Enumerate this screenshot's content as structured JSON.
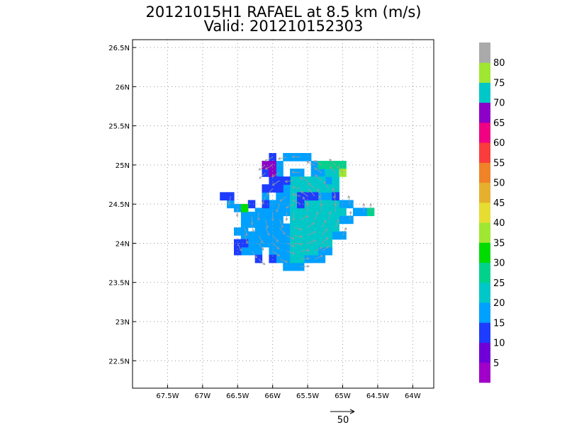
{
  "title_line1": "20121015H1 RAFAEL at 8.5 km (m/s)",
  "title_line2": "Valid: 201210152303",
  "chart_data": {
    "type": "heatmap",
    "title": "20121015H1 RAFAEL at 8.5 km (m/s)",
    "subtitle": "Valid: 201210152303",
    "xlim": [
      -68.0,
      -63.7
    ],
    "ylim": [
      22.15,
      26.6
    ],
    "x_ticks": [
      -67.5,
      -67.0,
      -66.5,
      -66.0,
      -65.5,
      -65.0,
      -64.5,
      -64.0
    ],
    "x_tick_labels": [
      "67.5W",
      "67W",
      "66.5W",
      "66W",
      "65.5W",
      "65W",
      "64.5W",
      "64W"
    ],
    "y_ticks": [
      22.5,
      23.0,
      23.5,
      24.0,
      24.5,
      25.0,
      25.5,
      26.0,
      26.5
    ],
    "y_tick_labels": [
      "22.5N",
      "23N",
      "23.5N",
      "24N",
      "24.5N",
      "25N",
      "25.5N",
      "26N",
      "26.5N"
    ],
    "grid": true,
    "grid_style": "dotted",
    "colorbar": {
      "orientation": "vertical",
      "placement": "right",
      "labels": [
        "5",
        "10",
        "15",
        "20",
        "25",
        "30",
        "35",
        "40",
        "45",
        "50",
        "55",
        "60",
        "65",
        "70",
        "75",
        "80"
      ],
      "colors": [
        "#a000c8",
        "#7000d8",
        "#1e3cff",
        "#00a0ff",
        "#00c8c8",
        "#00d28c",
        "#00dc00",
        "#a0e632",
        "#e6dc32",
        "#e6af2d",
        "#f08228",
        "#fa3c3c",
        "#f00082",
        "#8c00c8",
        "#00c8c8",
        "#a0e632",
        "#aaaaaa"
      ]
    },
    "reference_vector": {
      "value": 50,
      "label": "50"
    },
    "series": [
      {
        "color": "#00a0ff",
        "cells": [
          [
            -66.6,
            24.5
          ],
          [
            -66.5,
            24.45
          ],
          [
            -66.4,
            24.4
          ],
          [
            -66.3,
            24.35
          ],
          [
            -66.2,
            24.3
          ],
          [
            -66.1,
            24.3
          ],
          [
            -66.0,
            24.3
          ],
          [
            -65.9,
            24.3
          ],
          [
            -66.4,
            24.3
          ],
          [
            -66.3,
            24.25
          ],
          [
            -66.2,
            24.2
          ],
          [
            -66.1,
            24.2
          ],
          [
            -66.0,
            24.2
          ],
          [
            -65.9,
            24.2
          ],
          [
            -65.8,
            24.2
          ],
          [
            -66.4,
            24.2
          ],
          [
            -66.5,
            24.15
          ],
          [
            -66.4,
            24.1
          ],
          [
            -66.3,
            24.1
          ],
          [
            -66.2,
            24.1
          ],
          [
            -66.1,
            24.1
          ],
          [
            -66.0,
            24.1
          ],
          [
            -65.9,
            24.1
          ],
          [
            -65.8,
            24.1
          ],
          [
            -66.3,
            24.0
          ],
          [
            -66.2,
            24.0
          ],
          [
            -66.1,
            24.0
          ],
          [
            -66.0,
            24.0
          ],
          [
            -65.9,
            24.0
          ],
          [
            -65.8,
            24.0
          ],
          [
            -66.4,
            23.9
          ],
          [
            -66.3,
            23.9
          ],
          [
            -66.2,
            23.9
          ],
          [
            -66.0,
            23.9
          ],
          [
            -65.9,
            23.9
          ],
          [
            -65.8,
            23.9
          ],
          [
            -65.8,
            23.8
          ],
          [
            -65.9,
            23.8
          ],
          [
            -65.8,
            23.7
          ],
          [
            -66.2,
            24.4
          ],
          [
            -66.1,
            24.4
          ],
          [
            -66.0,
            24.4
          ],
          [
            -65.9,
            24.4
          ],
          [
            -65.8,
            24.4
          ],
          [
            -66.0,
            24.5
          ],
          [
            -65.9,
            24.5
          ],
          [
            -65.8,
            24.5
          ],
          [
            -66.1,
            24.6
          ],
          [
            -65.9,
            24.6
          ],
          [
            -65.8,
            24.6
          ],
          [
            -65.8,
            24.7
          ],
          [
            -65.9,
            24.9
          ],
          [
            -65.7,
            24.9
          ],
          [
            -65.6,
            24.9
          ],
          [
            -65.9,
            25.0
          ],
          [
            -65.8,
            25.1
          ],
          [
            -65.7,
            25.1
          ],
          [
            -65.6,
            25.1
          ],
          [
            -65.5,
            25.1
          ],
          [
            -65.4,
            25.0
          ],
          [
            -65.4,
            24.9
          ],
          [
            -65.3,
            24.9
          ],
          [
            -65.2,
            24.8
          ],
          [
            -65.3,
            24.6
          ],
          [
            -65.2,
            24.6
          ],
          [
            -65.1,
            24.6
          ],
          [
            -65.0,
            24.5
          ],
          [
            -64.9,
            24.5
          ],
          [
            -64.8,
            24.4
          ],
          [
            -64.7,
            24.4
          ],
          [
            -65.0,
            24.3
          ],
          [
            -64.9,
            24.3
          ],
          [
            -65.1,
            24.1
          ],
          [
            -65.0,
            24.1
          ],
          [
            -65.2,
            23.9
          ],
          [
            -65.3,
            23.9
          ],
          [
            -65.3,
            23.8
          ],
          [
            -65.4,
            23.8
          ],
          [
            -65.5,
            23.8
          ],
          [
            -65.6,
            23.7
          ],
          [
            -65.7,
            23.7
          ]
        ]
      },
      {
        "color": "#00c8c8",
        "cells": [
          [
            -65.7,
            24.0
          ],
          [
            -65.6,
            24.0
          ],
          [
            -65.5,
            24.0
          ],
          [
            -65.4,
            24.0
          ],
          [
            -65.3,
            24.0
          ],
          [
            -65.2,
            24.0
          ],
          [
            -65.7,
            24.1
          ],
          [
            -65.6,
            24.1
          ],
          [
            -65.5,
            24.1
          ],
          [
            -65.4,
            24.1
          ],
          [
            -65.3,
            24.1
          ],
          [
            -65.2,
            24.1
          ],
          [
            -65.7,
            24.2
          ],
          [
            -65.6,
            24.2
          ],
          [
            -65.5,
            24.2
          ],
          [
            -65.4,
            24.2
          ],
          [
            -65.3,
            24.2
          ],
          [
            -65.2,
            24.2
          ],
          [
            -65.1,
            24.2
          ],
          [
            -65.7,
            24.3
          ],
          [
            -65.6,
            24.3
          ],
          [
            -65.5,
            24.3
          ],
          [
            -65.4,
            24.3
          ],
          [
            -65.3,
            24.3
          ],
          [
            -65.2,
            24.3
          ],
          [
            -65.1,
            24.3
          ],
          [
            -65.7,
            24.4
          ],
          [
            -65.6,
            24.4
          ],
          [
            -65.5,
            24.4
          ],
          [
            -65.4,
            24.4
          ],
          [
            -65.3,
            24.4
          ],
          [
            -65.2,
            24.4
          ],
          [
            -65.1,
            24.4
          ],
          [
            -65.0,
            24.4
          ],
          [
            -65.7,
            24.5
          ],
          [
            -65.6,
            24.5
          ],
          [
            -65.5,
            24.5
          ],
          [
            -65.4,
            24.5
          ],
          [
            -65.3,
            24.5
          ],
          [
            -65.2,
            24.5
          ],
          [
            -65.1,
            24.5
          ],
          [
            -65.7,
            24.6
          ],
          [
            -65.6,
            24.6
          ],
          [
            -65.5,
            24.6
          ],
          [
            -65.4,
            24.6
          ],
          [
            -65.7,
            24.7
          ],
          [
            -65.6,
            24.7
          ],
          [
            -65.5,
            24.7
          ],
          [
            -65.4,
            24.7
          ],
          [
            -65.3,
            24.7
          ],
          [
            -65.2,
            24.7
          ],
          [
            -65.1,
            24.7
          ],
          [
            -65.7,
            24.8
          ],
          [
            -65.6,
            24.8
          ],
          [
            -65.5,
            24.8
          ],
          [
            -65.4,
            24.8
          ],
          [
            -65.3,
            24.8
          ],
          [
            -65.7,
            23.9
          ],
          [
            -65.6,
            23.9
          ],
          [
            -65.5,
            23.9
          ],
          [
            -65.4,
            23.9
          ],
          [
            -65.7,
            23.8
          ],
          [
            -65.6,
            23.8
          ],
          [
            -65.2,
            24.9
          ],
          [
            -65.1,
            24.9
          ],
          [
            -65.1,
            24.8
          ]
        ]
      },
      {
        "color": "#00d28c",
        "cells": [
          [
            -65.3,
            25.0
          ],
          [
            -65.2,
            25.0
          ],
          [
            -65.1,
            25.0
          ],
          [
            -65.0,
            25.0
          ],
          [
            -64.6,
            24.4
          ]
        ]
      },
      {
        "color": "#1e3cff",
        "cells": [
          [
            -66.7,
            24.6
          ],
          [
            -66.6,
            24.6
          ],
          [
            -66.1,
            24.7
          ],
          [
            -66.0,
            24.7
          ],
          [
            -65.9,
            24.7
          ],
          [
            -65.6,
            24.6
          ],
          [
            -66.1,
            24.5
          ],
          [
            -66.1,
            24.9
          ],
          [
            -66.1,
            25.0
          ],
          [
            -66.0,
            25.1
          ],
          [
            -65.8,
            24.8
          ],
          [
            -65.9,
            24.8
          ],
          [
            -66.0,
            24.8
          ],
          [
            -65.5,
            24.6
          ],
          [
            -65.4,
            24.6
          ],
          [
            -65.6,
            24.5
          ],
          [
            -66.0,
            23.8
          ],
          [
            -66.2,
            23.8
          ],
          [
            -66.4,
            24.0
          ],
          [
            -66.5,
            24.0
          ],
          [
            -66.5,
            23.9
          ],
          [
            -65.1,
            24.6
          ],
          [
            -66.3,
            24.5
          ]
        ]
      },
      {
        "color": "#8c00c8",
        "cells": [
          [
            -66.1,
            25.0
          ],
          [
            -66.0,
            24.9
          ],
          [
            -66.0,
            25.0
          ]
        ]
      },
      {
        "color": "#00dc00",
        "cells": [
          [
            -66.4,
            24.45
          ]
        ]
      },
      {
        "color": "#a0e632",
        "cells": [
          [
            -65.0,
            24.9
          ]
        ]
      }
    ]
  }
}
